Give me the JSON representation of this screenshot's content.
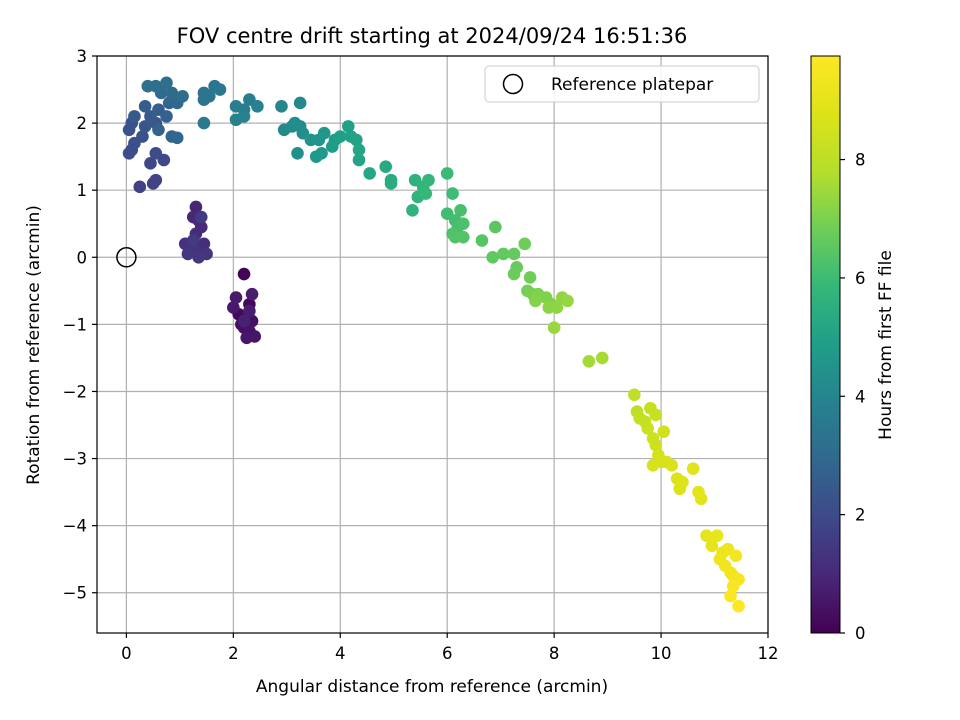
{
  "chart_data": {
    "type": "scatter",
    "title": "FOV centre drift starting at 2024/09/24 16:51:36",
    "xlabel": "Angular distance from reference (arcmin)",
    "ylabel": "Rotation from reference (arcmin)",
    "xlim": [
      -0.55,
      12.0
    ],
    "ylim": [
      -5.6,
      3.0
    ],
    "x_ticks": [
      0,
      2,
      4,
      6,
      8,
      10,
      12
    ],
    "y_ticks": [
      3,
      2,
      1,
      0,
      -1,
      -2,
      -3,
      -4,
      -5
    ],
    "x_tick_labels": [
      "0",
      "2",
      "4",
      "6",
      "8",
      "10",
      "12"
    ],
    "y_tick_labels": [
      "3",
      "2",
      "1",
      "0",
      "−1",
      "−2",
      "−3",
      "−4",
      "−5"
    ],
    "grid": true,
    "legend": {
      "position": "top-right",
      "entries": [
        "Reference platepar"
      ]
    },
    "reference_point": {
      "x": 0,
      "y": 0
    },
    "colorbar": {
      "label": "Hours from first FF file",
      "colormap": "viridis",
      "range": [
        0,
        9.75
      ],
      "ticks": [
        0,
        2,
        4,
        6,
        8
      ],
      "tick_labels": [
        "0",
        "2",
        "4",
        "6",
        "8"
      ]
    },
    "points": [
      [
        2.2,
        -0.25,
        0.1
      ],
      [
        2.3,
        -0.7,
        0.15
      ],
      [
        2.1,
        -0.85,
        0.2
      ],
      [
        2.25,
        -0.9,
        0.25
      ],
      [
        2.15,
        -1.0,
        0.3
      ],
      [
        2.35,
        -0.95,
        0.35
      ],
      [
        2.2,
        -1.05,
        0.4
      ],
      [
        2.3,
        -1.1,
        0.45
      ],
      [
        2.4,
        -1.18,
        0.5
      ],
      [
        2.25,
        -1.2,
        0.55
      ],
      [
        2.0,
        -0.75,
        0.6
      ],
      [
        2.05,
        -0.6,
        0.65
      ],
      [
        2.35,
        -0.55,
        0.7
      ],
      [
        2.3,
        -0.8,
        0.75
      ],
      [
        2.2,
        -0.95,
        0.8
      ],
      [
        1.3,
        0.75,
        0.9
      ],
      [
        1.25,
        0.6,
        0.95
      ],
      [
        1.35,
        0.55,
        1.0
      ],
      [
        1.4,
        0.45,
        1.05
      ],
      [
        1.3,
        0.35,
        1.1
      ],
      [
        1.45,
        0.2,
        1.15
      ],
      [
        1.2,
        0.15,
        1.2
      ],
      [
        1.1,
        0.2,
        1.25
      ],
      [
        1.3,
        0.1,
        1.3
      ],
      [
        1.5,
        0.05,
        1.35
      ],
      [
        1.35,
        0.0,
        1.4
      ],
      [
        1.15,
        0.05,
        1.45
      ],
      [
        1.25,
        0.25,
        1.5
      ],
      [
        1.4,
        0.6,
        1.55
      ],
      [
        0.25,
        1.05,
        1.7
      ],
      [
        0.5,
        1.1,
        1.75
      ],
      [
        0.55,
        1.15,
        1.8
      ],
      [
        0.45,
        1.4,
        1.9
      ],
      [
        0.7,
        1.45,
        1.95
      ],
      [
        0.55,
        1.55,
        2.0
      ],
      [
        0.1,
        1.6,
        2.05
      ],
      [
        0.05,
        1.55,
        2.1
      ],
      [
        0.15,
        1.7,
        2.15
      ],
      [
        0.3,
        1.8,
        2.2
      ],
      [
        0.05,
        1.9,
        2.25
      ],
      [
        0.1,
        2.0,
        2.3
      ],
      [
        0.35,
        1.95,
        2.35
      ],
      [
        0.55,
        2.0,
        2.4
      ],
      [
        0.45,
        2.1,
        2.45
      ],
      [
        0.15,
        2.1,
        2.5
      ],
      [
        0.35,
        2.25,
        2.55
      ],
      [
        0.6,
        2.2,
        2.6
      ],
      [
        0.75,
        2.1,
        2.7
      ],
      [
        0.6,
        1.9,
        2.75
      ],
      [
        0.85,
        1.8,
        2.8
      ],
      [
        0.95,
        1.78,
        2.85
      ],
      [
        0.8,
        2.3,
        2.9
      ],
      [
        0.95,
        2.3,
        2.95
      ],
      [
        0.65,
        2.45,
        3.0
      ],
      [
        0.85,
        2.45,
        3.05
      ],
      [
        1.05,
        2.4,
        3.1
      ],
      [
        0.55,
        2.55,
        3.15
      ],
      [
        0.75,
        2.6,
        3.2
      ],
      [
        0.4,
        2.55,
        3.25
      ],
      [
        1.45,
        2.35,
        3.3
      ],
      [
        1.45,
        2.45,
        3.35
      ],
      [
        1.55,
        2.4,
        3.4
      ],
      [
        1.65,
        2.55,
        3.45
      ],
      [
        1.75,
        2.5,
        3.5
      ],
      [
        1.45,
        2.0,
        3.55
      ],
      [
        2.05,
        2.25,
        3.7
      ],
      [
        2.2,
        2.2,
        3.75
      ],
      [
        2.3,
        2.35,
        3.8
      ],
      [
        2.45,
        2.25,
        3.85
      ],
      [
        2.2,
        2.1,
        3.9
      ],
      [
        2.05,
        2.05,
        3.95
      ],
      [
        2.9,
        2.25,
        4.05
      ],
      [
        3.25,
        2.3,
        4.1
      ],
      [
        2.95,
        1.9,
        4.15
      ],
      [
        3.1,
        1.95,
        4.2
      ],
      [
        3.25,
        1.95,
        4.25
      ],
      [
        3.15,
        2.0,
        4.3
      ],
      [
        3.3,
        1.85,
        4.35
      ],
      [
        3.2,
        1.55,
        4.4
      ],
      [
        3.45,
        1.75,
        4.5
      ],
      [
        3.6,
        1.75,
        4.55
      ],
      [
        3.7,
        1.85,
        4.6
      ],
      [
        3.65,
        1.55,
        4.65
      ],
      [
        3.55,
        1.5,
        4.7
      ],
      [
        3.85,
        1.65,
        4.8
      ],
      [
        3.9,
        1.75,
        4.85
      ],
      [
        4.0,
        1.8,
        4.9
      ],
      [
        4.15,
        1.95,
        4.95
      ],
      [
        4.2,
        1.8,
        5.0
      ],
      [
        4.3,
        1.75,
        5.05
      ],
      [
        4.35,
        1.45,
        5.1
      ],
      [
        4.35,
        1.6,
        5.15
      ],
      [
        4.55,
        1.25,
        5.2
      ],
      [
        4.85,
        1.35,
        5.3
      ],
      [
        4.95,
        1.15,
        5.35
      ],
      [
        4.95,
        1.1,
        5.4
      ],
      [
        5.4,
        1.15,
        5.6
      ],
      [
        5.35,
        0.7,
        5.65
      ],
      [
        5.45,
        0.9,
        5.7
      ],
      [
        5.55,
        1.05,
        5.75
      ],
      [
        5.65,
        1.15,
        5.8
      ],
      [
        5.6,
        0.95,
        5.85
      ],
      [
        6.0,
        1.25,
        5.95
      ],
      [
        6.1,
        0.95,
        6.0
      ],
      [
        6.0,
        0.65,
        6.05
      ],
      [
        6.15,
        0.55,
        6.1
      ],
      [
        6.2,
        0.45,
        6.15
      ],
      [
        6.25,
        0.7,
        6.2
      ],
      [
        6.3,
        0.5,
        6.25
      ],
      [
        6.1,
        0.35,
        6.3
      ],
      [
        6.15,
        0.3,
        6.35
      ],
      [
        6.3,
        0.3,
        6.4
      ],
      [
        6.65,
        0.25,
        6.45
      ],
      [
        6.9,
        0.45,
        6.5
      ],
      [
        6.85,
        0.0,
        6.55
      ],
      [
        7.05,
        0.05,
        6.6
      ],
      [
        7.25,
        0.05,
        6.65
      ],
      [
        7.3,
        -0.15,
        6.7
      ],
      [
        7.25,
        -0.25,
        6.75
      ],
      [
        7.45,
        0.2,
        6.8
      ],
      [
        7.55,
        -0.3,
        6.85
      ],
      [
        7.5,
        -0.5,
        6.9
      ],
      [
        7.6,
        -0.55,
        6.95
      ],
      [
        7.7,
        -0.55,
        7.0
      ],
      [
        7.85,
        -0.6,
        7.05
      ],
      [
        7.95,
        -0.7,
        7.1
      ],
      [
        7.65,
        -0.65,
        7.15
      ],
      [
        7.9,
        -0.75,
        7.2
      ],
      [
        8.05,
        -0.75,
        7.25
      ],
      [
        8.15,
        -0.6,
        7.3
      ],
      [
        8.25,
        -0.65,
        7.35
      ],
      [
        8.0,
        -1.05,
        7.4
      ],
      [
        8.65,
        -1.55,
        7.55
      ],
      [
        8.9,
        -1.5,
        7.6
      ],
      [
        9.5,
        -2.05,
        8.0
      ],
      [
        9.55,
        -2.3,
        8.05
      ],
      [
        9.6,
        -2.4,
        8.1
      ],
      [
        9.7,
        -2.45,
        8.15
      ],
      [
        9.8,
        -2.25,
        8.2
      ],
      [
        9.9,
        -2.35,
        8.25
      ],
      [
        9.75,
        -2.55,
        8.3
      ],
      [
        9.85,
        -2.7,
        8.35
      ],
      [
        9.9,
        -2.8,
        8.4
      ],
      [
        10.05,
        -2.6,
        8.45
      ],
      [
        9.95,
        -2.95,
        8.5
      ],
      [
        10.0,
        -3.05,
        8.55
      ],
      [
        9.85,
        -3.1,
        8.6
      ],
      [
        10.1,
        -3.05,
        8.65
      ],
      [
        10.2,
        -3.1,
        8.7
      ],
      [
        10.3,
        -3.3,
        8.75
      ],
      [
        10.35,
        -3.45,
        8.8
      ],
      [
        10.4,
        -3.35,
        8.85
      ],
      [
        10.6,
        -3.15,
        8.9
      ],
      [
        10.7,
        -3.5,
        8.95
      ],
      [
        10.75,
        -3.6,
        9.0
      ],
      [
        10.85,
        -4.15,
        9.05
      ],
      [
        10.95,
        -4.3,
        9.1
      ],
      [
        11.05,
        -4.15,
        9.15
      ],
      [
        11.15,
        -4.4,
        9.2
      ],
      [
        11.1,
        -4.5,
        9.25
      ],
      [
        11.25,
        -4.35,
        9.3
      ],
      [
        11.2,
        -4.6,
        9.35
      ],
      [
        11.3,
        -4.7,
        9.4
      ],
      [
        11.35,
        -4.75,
        9.45
      ],
      [
        11.4,
        -4.45,
        9.5
      ],
      [
        11.45,
        -4.8,
        9.55
      ],
      [
        11.35,
        -4.9,
        9.6
      ],
      [
        11.3,
        -5.05,
        9.65
      ],
      [
        11.45,
        -5.2,
        9.7
      ]
    ]
  }
}
